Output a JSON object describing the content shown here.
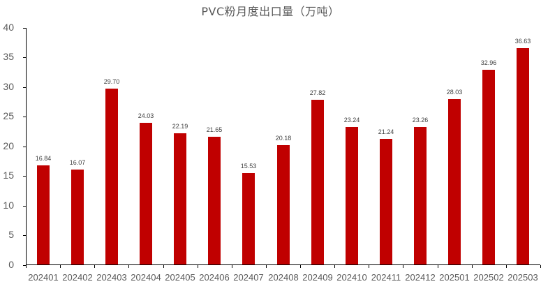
{
  "chart_data": {
    "type": "bar",
    "title": "PVC粉月度出口量（万吨）",
    "xlabel": "",
    "ylabel": "",
    "ylim": [
      0,
      40
    ],
    "yticks": [
      0,
      5,
      10,
      15,
      20,
      25,
      30,
      35,
      40
    ],
    "grid": false,
    "legend": null,
    "bar_color": "#c00000",
    "categories": [
      "202401",
      "202402",
      "202403",
      "202404",
      "202405",
      "202406",
      "202407",
      "202408",
      "202409",
      "202410",
      "202411",
      "202412",
      "202501",
      "202502",
      "202503"
    ],
    "values": [
      16.84,
      16.07,
      29.7,
      24.03,
      22.19,
      21.65,
      15.53,
      20.18,
      27.82,
      23.24,
      21.24,
      23.26,
      28.03,
      32.96,
      36.63
    ],
    "data_labels": [
      "16.84",
      "16.07",
      "29.70",
      "24.03",
      "22.19",
      "21.65",
      "15.53",
      "20.18",
      "27.82",
      "23.24",
      "21.24",
      "23.26",
      "28.03",
      "32.96",
      "36.63"
    ]
  }
}
